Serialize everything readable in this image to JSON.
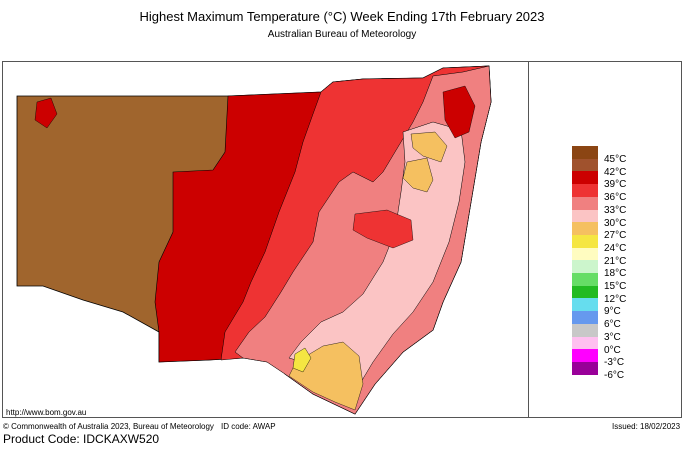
{
  "title": "Highest Maximum Temperature (°C)   Week Ending 17th February 2023",
  "subtitle": "Australian Bureau of Meteorology",
  "footer": {
    "url": "http://www.bom.gov.au",
    "copyright": "© Commonwealth of Australia 2023, Bureau of Meteorology",
    "id_code": "ID code: AWAP",
    "issued": "Issued: 18/02/2023"
  },
  "product_code": "Product Code: IDCKAXW520",
  "legend": [
    {
      "label": "45°C",
      "color": "#8b4513"
    },
    {
      "label": "42°C",
      "color": "#a0522d"
    },
    {
      "label": "39°C",
      "color": "#cc0000"
    },
    {
      "label": "36°C",
      "color": "#ee3333"
    },
    {
      "label": "33°C",
      "color": "#f08080"
    },
    {
      "label": "30°C",
      "color": "#fbc4c4"
    },
    {
      "label": "27°C",
      "color": "#f5c060"
    },
    {
      "label": "24°C",
      "color": "#f5e642"
    },
    {
      "label": "21°C",
      "color": "#fffcc0"
    },
    {
      "label": "18°C",
      "color": "#ccf5cc"
    },
    {
      "label": "15°C",
      "color": "#66dd66"
    },
    {
      "label": "12°C",
      "color": "#22bb22"
    },
    {
      "label": "9°C",
      "color": "#66ddee"
    },
    {
      "label": "6°C",
      "color": "#6699ee"
    },
    {
      "label": "3°C",
      "color": "#c8c8c8"
    },
    {
      "label": "0°C",
      "color": "#ffc0f0"
    },
    {
      "label": "-3°C",
      "color": "#ff00ff"
    },
    {
      "label": "-6°C",
      "color": "#990099"
    }
  ]
}
